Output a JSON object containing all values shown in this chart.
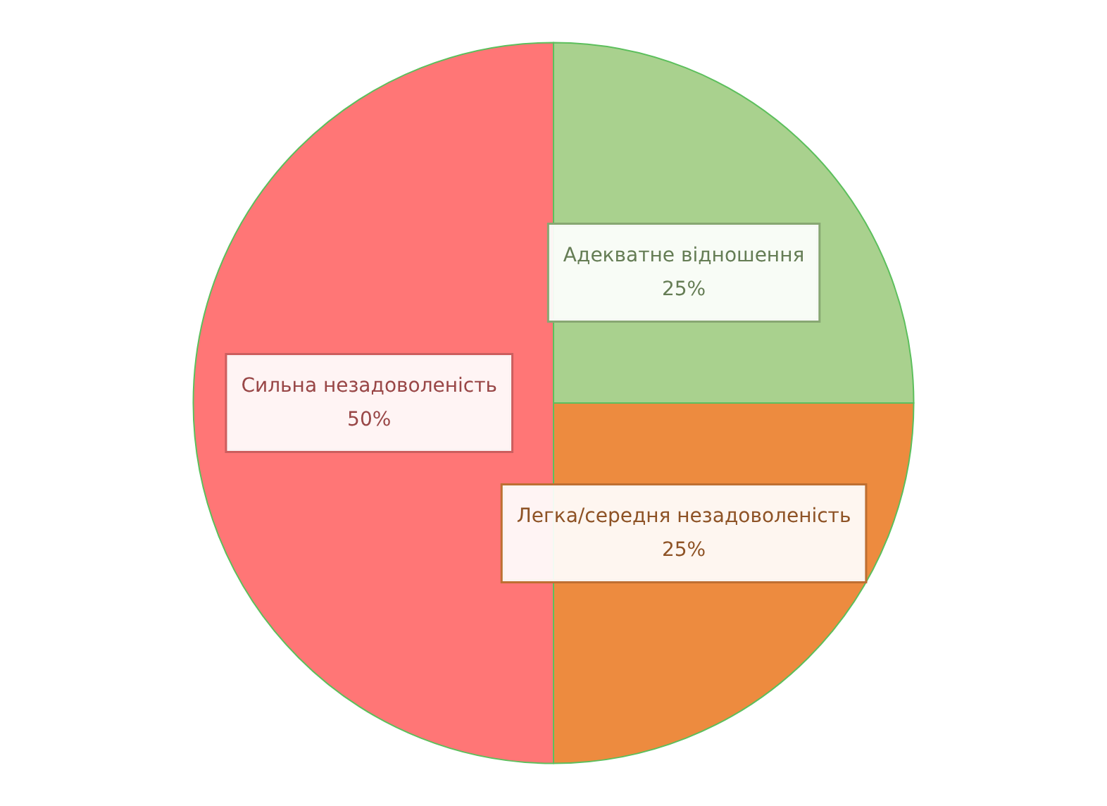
{
  "chart_data": {
    "type": "pie",
    "categories": [
      "Адекватне відношення",
      "Легка/середня незадоволеність",
      "Сильна незадоволеність"
    ],
    "values": [
      25,
      25,
      50
    ],
    "value_labels": [
      "25%",
      "25%",
      "50%"
    ],
    "colors": [
      "#a9d18e",
      "#ed8b3f",
      "#ff7676"
    ]
  }
}
